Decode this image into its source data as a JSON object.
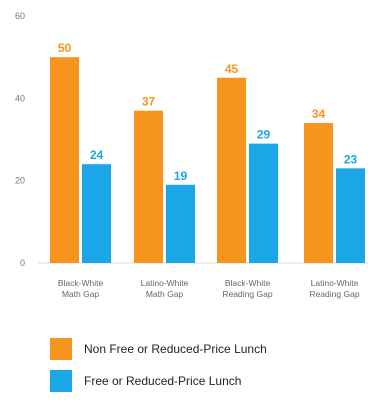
{
  "chart_data": {
    "type": "bar",
    "categories": [
      [
        "Black-White",
        "Math Gap"
      ],
      [
        "Latino-White",
        "Math Gap"
      ],
      [
        "Black-White",
        "Reading Gap"
      ],
      [
        "Latino-White",
        "Reading Gap"
      ]
    ],
    "series": [
      {
        "name": "Non Free or Reduced-Price Lunch",
        "values": [
          50,
          37,
          45,
          34
        ],
        "color": "#F7941D"
      },
      {
        "name": "Free or Reduced-Price Lunch",
        "values": [
          24,
          19,
          29,
          23
        ],
        "color": "#1BA6E8"
      }
    ],
    "ylim": [
      0,
      60
    ],
    "yticks": [
      "0",
      "20",
      "40",
      "60"
    ],
    "grid": false,
    "legend_position": "bottom"
  },
  "legend": {
    "item0": "Non Free or Reduced-Price Lunch",
    "item1": "Free or Reduced-Price Lunch"
  }
}
